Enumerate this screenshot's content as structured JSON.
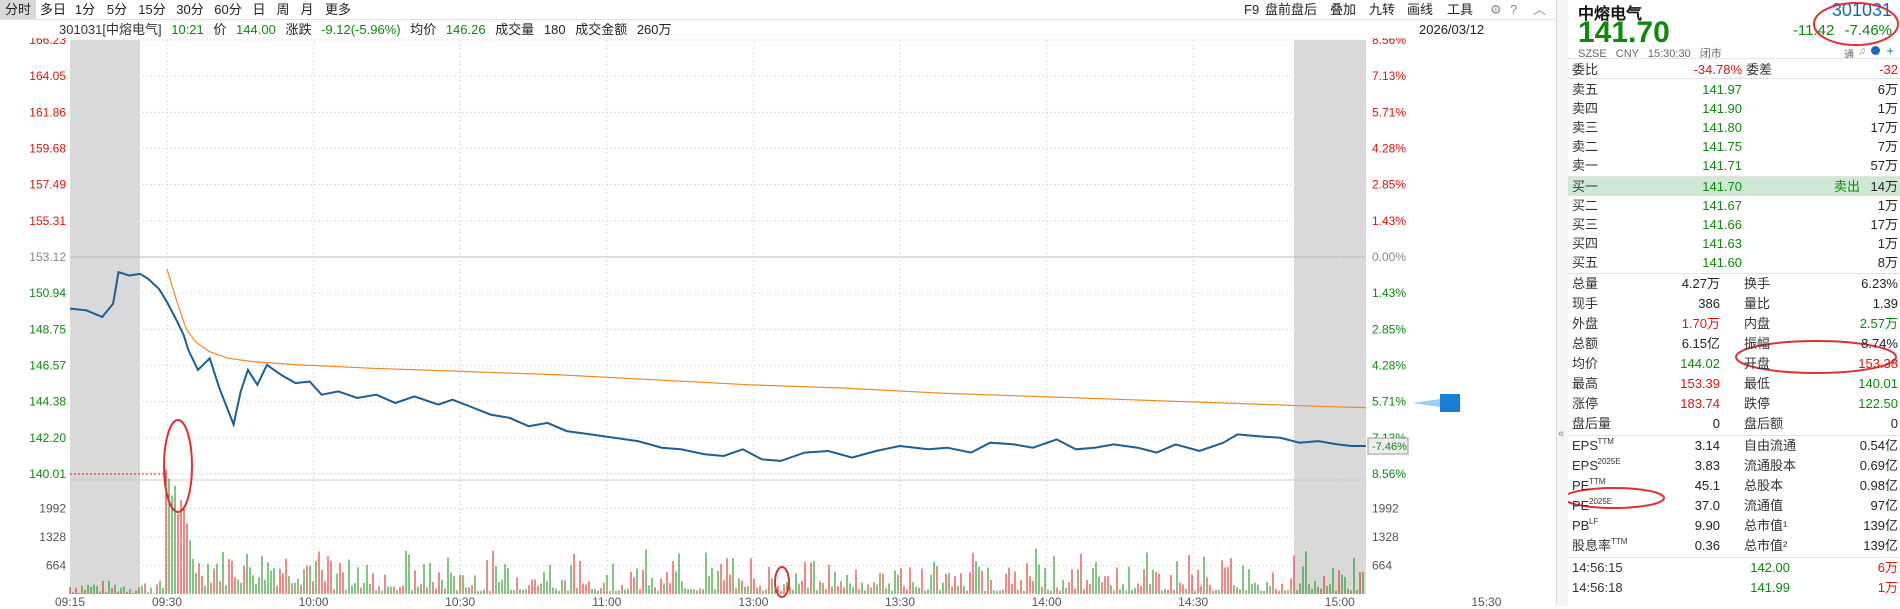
{
  "periods": [
    {
      "label": "分时",
      "active": true
    },
    {
      "label": "多日"
    },
    {
      "label": "1分"
    },
    {
      "label": "5分"
    },
    {
      "label": "15分"
    },
    {
      "label": "30分"
    },
    {
      "label": "60分"
    },
    {
      "label": "日"
    },
    {
      "label": "周"
    },
    {
      "label": "月"
    },
    {
      "label": "更多"
    }
  ],
  "tools": [
    "F9",
    "盘前盘后",
    "叠加",
    "九转",
    "画线",
    "工具"
  ],
  "header": {
    "code": "301031[中熔电气]",
    "time": "10:21",
    "price_label": "价",
    "price": "144.00",
    "change_label": "涨跌",
    "change": "-9.12(-5.96%)",
    "avg_label": "均价",
    "avg": "146.26",
    "vol_label": "成交量",
    "vol": "180",
    "amount_label": "成交金额",
    "amount": "260万",
    "date": "2026/03/12"
  },
  "axis": {
    "left_prices": [
      "166.23",
      "164.05",
      "161.86",
      "159.68",
      "157.49",
      "155.31",
      "153.12",
      "150.94",
      "148.75",
      "146.57",
      "144.38",
      "142.20",
      "140.01"
    ],
    "right_pcts": [
      "8.56%",
      "7.13%",
      "5.71%",
      "4.28%",
      "2.85%",
      "1.43%",
      "0.00%",
      "1.43%",
      "2.85%",
      "4.28%",
      "5.71%",
      "7.13%",
      "8.56%"
    ],
    "vol_ticks": [
      "1992",
      "1328",
      "664"
    ],
    "times": [
      "09:15",
      "09:30",
      "10:00",
      "10:30",
      "11:00",
      "13:00",
      "13:30",
      "14:00",
      "14:30",
      "15:00",
      "15:30"
    ],
    "last_pct": "-7.46%"
  },
  "chart_data": {
    "type": "line",
    "prev_close": 153.12,
    "ylim": [
      140.01,
      166.23
    ],
    "series": [
      {
        "name": "价",
        "color": "#1b5f96",
        "points": [
          [
            0,
            150.0
          ],
          [
            6,
            149.9
          ],
          [
            12,
            149.5
          ],
          [
            16,
            150.3
          ],
          [
            18,
            152.2
          ],
          [
            22,
            152.0
          ],
          [
            26,
            152.1
          ],
          [
            29,
            151.8
          ],
          [
            33,
            151.2
          ],
          [
            36,
            150.4
          ],
          [
            40,
            149.3
          ],
          [
            43,
            148.4
          ],
          [
            45,
            147.5
          ],
          [
            49,
            146.3
          ],
          [
            54,
            147.0
          ],
          [
            58,
            145.2
          ],
          [
            61,
            144.1
          ],
          [
            64,
            143.0
          ],
          [
            67,
            145.0
          ],
          [
            70,
            146.3
          ],
          [
            74,
            145.4
          ],
          [
            78,
            146.6
          ],
          [
            84,
            146.0
          ],
          [
            90,
            145.5
          ],
          [
            96,
            145.6
          ],
          [
            101,
            144.8
          ],
          [
            108,
            145.0
          ],
          [
            116,
            144.6
          ],
          [
            124,
            144.8
          ],
          [
            132,
            144.3
          ],
          [
            140,
            144.7
          ],
          [
            150,
            144.2
          ],
          [
            156,
            144.5
          ],
          [
            165,
            144.0
          ],
          [
            172,
            143.6
          ],
          [
            180,
            143.4
          ],
          [
            188,
            142.9
          ],
          [
            196,
            143.1
          ],
          [
            204,
            142.6
          ],
          [
            214,
            142.4
          ],
          [
            224,
            142.2
          ],
          [
            234,
            142.0
          ],
          [
            244,
            141.6
          ],
          [
            252,
            141.5
          ],
          [
            262,
            141.2
          ],
          [
            270,
            141.1
          ],
          [
            278,
            141.5
          ],
          [
            286,
            140.9
          ],
          [
            294,
            140.8
          ],
          [
            304,
            141.3
          ],
          [
            314,
            141.4
          ],
          [
            324,
            141.0
          ],
          [
            334,
            141.4
          ],
          [
            344,
            141.7
          ],
          [
            356,
            141.5
          ],
          [
            364,
            141.6
          ],
          [
            374,
            141.3
          ],
          [
            382,
            141.9
          ],
          [
            392,
            141.8
          ],
          [
            400,
            141.6
          ],
          [
            410,
            142.1
          ],
          [
            418,
            141.5
          ],
          [
            426,
            141.6
          ],
          [
            434,
            141.8
          ],
          [
            444,
            141.6
          ],
          [
            452,
            141.3
          ],
          [
            460,
            141.8
          ],
          [
            470,
            141.4
          ],
          [
            480,
            141.9
          ],
          [
            486,
            142.4
          ],
          [
            494,
            142.3
          ],
          [
            504,
            142.2
          ],
          [
            512,
            141.9
          ],
          [
            520,
            142.0
          ],
          [
            528,
            141.8
          ],
          [
            534,
            141.7
          ],
          [
            540,
            141.7
          ]
        ]
      },
      {
        "name": "均价",
        "color": "#f08a1d",
        "points": [
          [
            34,
            152.4
          ],
          [
            38,
            150.5
          ],
          [
            42,
            148.8
          ],
          [
            46,
            148.0
          ],
          [
            52,
            147.4
          ],
          [
            60,
            147.0
          ],
          [
            70,
            146.8
          ],
          [
            90,
            146.6
          ],
          [
            120,
            146.4
          ],
          [
            160,
            146.2
          ],
          [
            200,
            146.0
          ],
          [
            240,
            145.7
          ],
          [
            280,
            145.4
          ],
          [
            320,
            145.2
          ],
          [
            360,
            144.9
          ],
          [
            400,
            144.7
          ],
          [
            440,
            144.5
          ],
          [
            480,
            144.3
          ],
          [
            520,
            144.1
          ],
          [
            540,
            144.02
          ]
        ]
      }
    ],
    "volume_scale_max": 2656
  },
  "quote": {
    "name": "中熔电气",
    "code": "301031",
    "price": "141.70",
    "change": "-11.42",
    "pct": "-7.46%",
    "exchange": "SZSE",
    "currency": "CNY",
    "time": "15:30:30",
    "status": "闭市"
  },
  "book": {
    "webi_label": "委比",
    "webi": "-34.78%",
    "weicha_label": "委差",
    "weicha": "-32",
    "asks": [
      {
        "label": "卖五",
        "price": "141.97",
        "vol": "6万"
      },
      {
        "label": "卖四",
        "price": "141.90",
        "vol": "1万"
      },
      {
        "label": "卖三",
        "price": "141.80",
        "vol": "17万"
      },
      {
        "label": "卖二",
        "price": "141.75",
        "vol": "7万"
      },
      {
        "label": "卖一",
        "price": "141.71",
        "vol": "57万"
      }
    ],
    "bids": [
      {
        "label": "买一",
        "price": "141.70",
        "extra": "卖出",
        "vol": "14万"
      },
      {
        "label": "买二",
        "price": "141.67",
        "vol": "1万"
      },
      {
        "label": "买三",
        "price": "141.66",
        "vol": "17万"
      },
      {
        "label": "买四",
        "price": "141.63",
        "vol": "1万"
      },
      {
        "label": "买五",
        "price": "141.60",
        "vol": "8万"
      }
    ]
  },
  "stats": [
    {
      "l1": "总量",
      "v1": "4.27万",
      "c1": "",
      "l2": "换手",
      "v2": "6.23%",
      "c2": ""
    },
    {
      "l1": "现手",
      "v1": "386",
      "c1": "",
      "l2": "量比",
      "v2": "1.39",
      "c2": ""
    },
    {
      "l1": "外盘",
      "v1": "1.70万",
      "c1": "red",
      "l2": "内盘",
      "v2": "2.57万",
      "c2": "green"
    },
    {
      "l1": "总额",
      "v1": "6.15亿",
      "c1": "",
      "l2": "振幅",
      "v2": "8.74%",
      "c2": ""
    },
    {
      "l1": "均价",
      "v1": "144.02",
      "c1": "green",
      "l2": "开盘",
      "v2": "153.38",
      "c2": "red"
    },
    {
      "l1": "最高",
      "v1": "153.39",
      "c1": "red",
      "l2": "最低",
      "v2": "140.01",
      "c2": "green"
    },
    {
      "l1": "涨停",
      "v1": "183.74",
      "c1": "red",
      "l2": "跌停",
      "v2": "122.50",
      "c2": "green"
    },
    {
      "l1": "盘后量",
      "v1": "0",
      "c1": "",
      "l2": "盘后额",
      "v2": "0",
      "c2": ""
    }
  ],
  "fundamentals": [
    {
      "l1": "EPS",
      "s1": "TTM",
      "v1": "3.14",
      "l2": "自由流通",
      "v2": "0.54亿"
    },
    {
      "l1": "EPS",
      "s1": "2025E",
      "v1": "3.83",
      "l2": "流通股本",
      "v2": "0.69亿"
    },
    {
      "l1": "PE",
      "s1": "TTM",
      "v1": "45.1",
      "l2": "总股本",
      "v2": "0.98亿"
    },
    {
      "l1": "PE",
      "s1": "2025E",
      "v1": "37.0",
      "l2": "流通值",
      "v2": "97亿"
    },
    {
      "l1": "PB",
      "s1": "LF",
      "v1": "9.90",
      "l2": "总市值¹",
      "v2": "139亿"
    },
    {
      "l1": "股息率",
      "s1": "TTM",
      "v1": "0.36",
      "l2": "总市值²",
      "v2": "139亿"
    }
  ],
  "ticks": [
    {
      "time": "14:56:15",
      "price": "142.00",
      "vol": "6万"
    },
    {
      "time": "14:56:18",
      "price": "141.99",
      "vol": "1万"
    }
  ]
}
